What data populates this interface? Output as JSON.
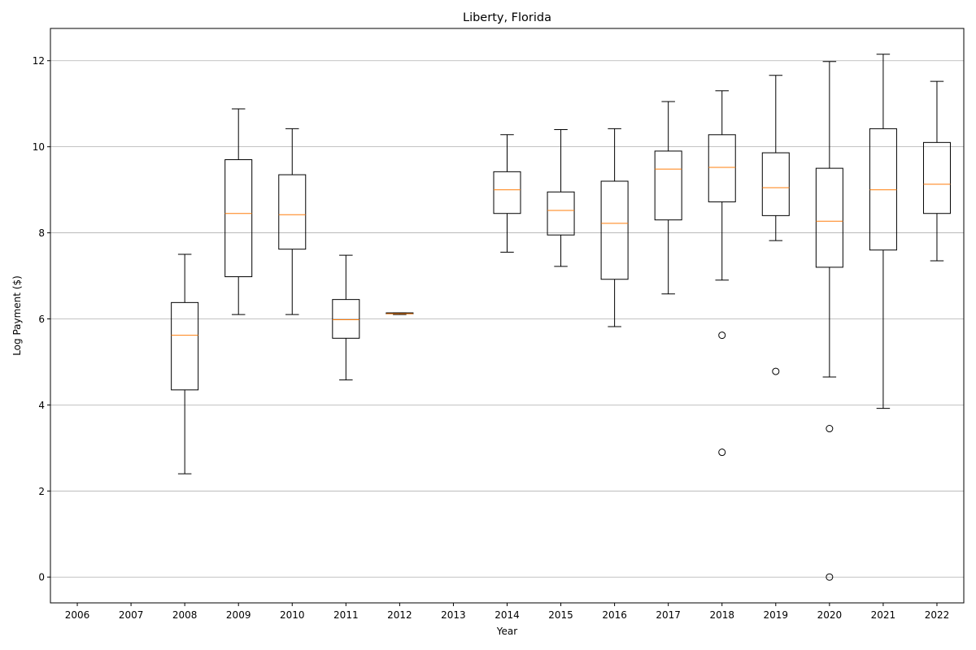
{
  "chart_data": {
    "type": "box",
    "title": "Liberty, Florida",
    "xlabel": "Year",
    "ylabel": "Log Payment ($)",
    "grid": "y",
    "ylim": [
      -0.6,
      12.75
    ],
    "yticks": [
      0,
      2,
      4,
      6,
      8,
      10,
      12
    ],
    "categories": [
      "2006",
      "2007",
      "2008",
      "2009",
      "2010",
      "2011",
      "2012",
      "2013",
      "2014",
      "2015",
      "2016",
      "2017",
      "2018",
      "2019",
      "2020",
      "2021",
      "2022"
    ],
    "boxes": [
      null,
      null,
      {
        "whisker_low": 2.4,
        "q1": 4.35,
        "median": 5.62,
        "q3": 6.38,
        "whisker_high": 7.5,
        "outliers": []
      },
      {
        "whisker_low": 6.1,
        "q1": 6.98,
        "median": 8.45,
        "q3": 9.7,
        "whisker_high": 10.88,
        "outliers": []
      },
      {
        "whisker_low": 6.1,
        "q1": 7.62,
        "median": 8.42,
        "q3": 9.35,
        "whisker_high": 10.42,
        "outliers": []
      },
      {
        "whisker_low": 4.58,
        "q1": 5.55,
        "median": 5.98,
        "q3": 6.45,
        "whisker_high": 7.48,
        "outliers": []
      },
      {
        "whisker_low": 6.1,
        "q1": 6.12,
        "median": 6.12,
        "q3": 6.14,
        "whisker_high": 6.14,
        "outliers": []
      },
      null,
      {
        "whisker_low": 7.55,
        "q1": 8.45,
        "median": 9.0,
        "q3": 9.42,
        "whisker_high": 10.28,
        "outliers": []
      },
      {
        "whisker_low": 7.22,
        "q1": 7.95,
        "median": 8.52,
        "q3": 8.95,
        "whisker_high": 10.4,
        "outliers": []
      },
      {
        "whisker_low": 5.82,
        "q1": 6.92,
        "median": 8.22,
        "q3": 9.2,
        "whisker_high": 10.42,
        "outliers": []
      },
      {
        "whisker_low": 6.58,
        "q1": 8.3,
        "median": 9.48,
        "q3": 9.9,
        "whisker_high": 11.05,
        "outliers": []
      },
      {
        "whisker_low": 6.9,
        "q1": 8.72,
        "median": 9.52,
        "q3": 10.28,
        "whisker_high": 11.3,
        "outliers": [
          5.62,
          2.9
        ]
      },
      {
        "whisker_low": 7.82,
        "q1": 8.4,
        "median": 9.05,
        "q3": 9.86,
        "whisker_high": 11.66,
        "outliers": [
          4.78
        ]
      },
      {
        "whisker_low": 4.65,
        "q1": 7.2,
        "median": 8.27,
        "q3": 9.5,
        "whisker_high": 11.98,
        "outliers": [
          3.45,
          0.0
        ]
      },
      {
        "whisker_low": 3.92,
        "q1": 7.6,
        "median": 9.0,
        "q3": 10.42,
        "whisker_high": 12.15,
        "outliers": []
      },
      {
        "whisker_low": 7.35,
        "q1": 8.45,
        "median": 9.13,
        "q3": 10.1,
        "whisker_high": 11.52,
        "outliers": []
      }
    ],
    "colors": {
      "box": "#000000",
      "median": "#ff7f0e",
      "grid": "#b0b0b0"
    }
  }
}
